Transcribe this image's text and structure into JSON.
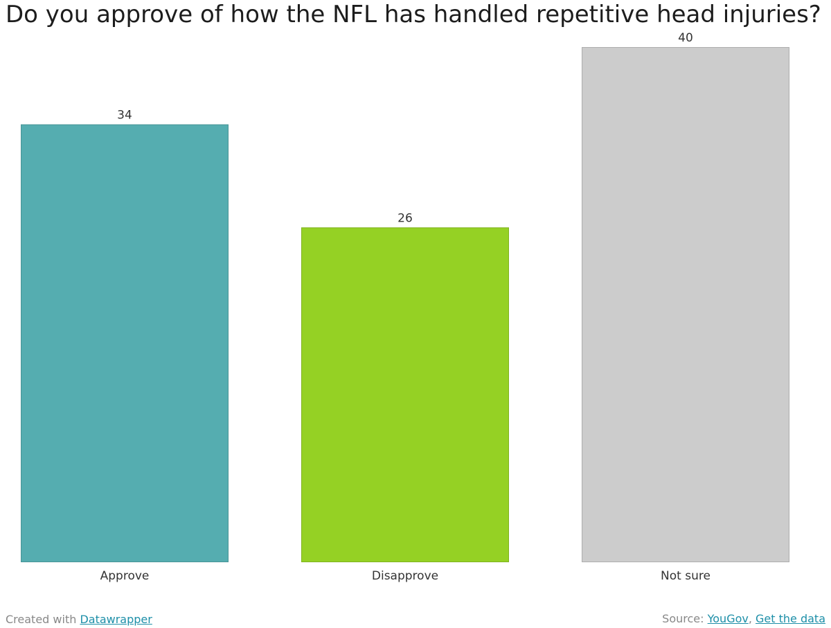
{
  "title": "Do you approve of how the NFL has handled repetitive head injuries?",
  "chart_data": {
    "type": "bar",
    "categories": [
      "Approve",
      "Disapprove",
      "Not sure"
    ],
    "values": [
      34,
      26,
      40
    ],
    "colors": [
      "#55adb0",
      "#95d124",
      "#cccccc"
    ],
    "ylim": [
      0,
      40
    ],
    "grid": false,
    "title": "Do you approve of how the NFL has handled repetitive head injuries?"
  },
  "footer": {
    "created_prefix": "Created with ",
    "created_link": "Datawrapper",
    "source_prefix": "Source: ",
    "source_link": "YouGov",
    "separator": ", ",
    "data_link": "Get the data"
  }
}
